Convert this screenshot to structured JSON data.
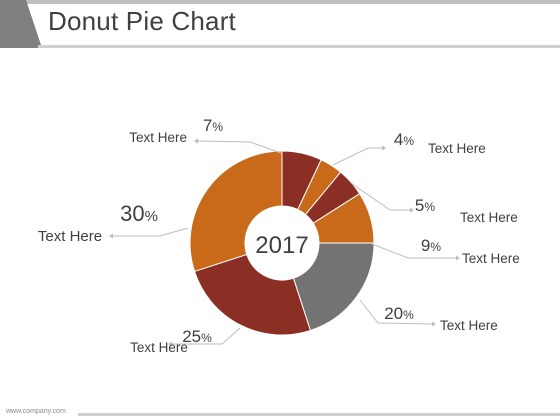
{
  "slide": {
    "title": "Donut Pie Chart",
    "footer": "www.company.com"
  },
  "chart_data": {
    "type": "pie",
    "donut": true,
    "center_label": "2017",
    "slices": [
      {
        "label": "Text Here",
        "value": 7,
        "value_label": "7",
        "unit": "%",
        "color": "#8b2e24"
      },
      {
        "label": "Text Here",
        "value": 4,
        "value_label": "4",
        "unit": "%",
        "color": "#c9691a"
      },
      {
        "label": "Text Here",
        "value": 5,
        "value_label": "5",
        "unit": "%",
        "color": "#8b2e24"
      },
      {
        "label": "Text Here",
        "value": 9,
        "value_label": "9",
        "unit": "%",
        "color": "#c9691a"
      },
      {
        "label": "Text Here",
        "value": 20,
        "value_label": "20",
        "unit": "%",
        "color": "#737373"
      },
      {
        "label": "Text Here",
        "value": 25,
        "value_label": "25",
        "unit": "%",
        "color": "#8b2e24"
      },
      {
        "label": "Text Here",
        "value": 30,
        "value_label": "30",
        "unit": "%",
        "color": "#c9691a"
      }
    ]
  }
}
